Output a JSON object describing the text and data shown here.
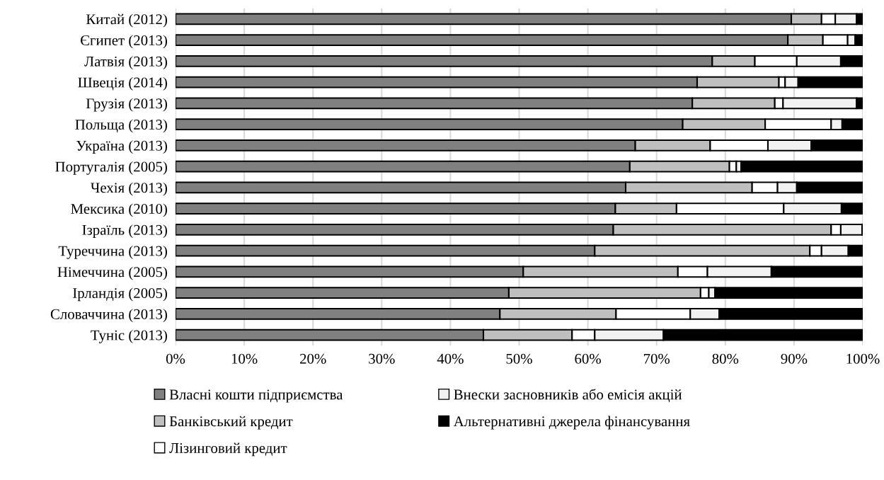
{
  "chart_data": {
    "type": "bar",
    "orientation": "horizontal",
    "stacked": true,
    "categories": [
      "Китай (2012)",
      "Єгипет (2013)",
      "Латвія (2013)",
      "Швеція (2014)",
      "Грузія (2013)",
      "Польща (2013)",
      "Україна (2013)",
      "Португалія (2005)",
      "Чехія (2013)",
      "Мексика (2010)",
      "Ізраїль (2013)",
      "Туреччина (2013)",
      "Німеччина (2005)",
      "Ірландія (2005)",
      "Словаччина (2013)",
      "Туніс (2013)"
    ],
    "series": [
      {
        "name": "Власні кошти підприємства",
        "color": "#808080",
        "values": [
          89.6,
          89.1,
          78.1,
          75.9,
          75.2,
          73.8,
          66.9,
          66.1,
          65.5,
          64.0,
          63.7,
          61.0,
          50.6,
          48.5,
          47.2,
          44.8
        ]
      },
      {
        "name": "Банківський кредит",
        "color": "#bfbfbf",
        "values": [
          4.4,
          5.1,
          6.2,
          11.9,
          12.0,
          12.0,
          10.9,
          14.5,
          18.4,
          8.9,
          31.7,
          31.3,
          22.5,
          27.9,
          16.9,
          12.9
        ]
      },
      {
        "name": "Лізинговий кредит",
        "color": "#ffffff",
        "values": [
          2.0,
          3.6,
          6.1,
          0.9,
          1.2,
          9.6,
          8.4,
          1.0,
          3.7,
          15.6,
          1.4,
          1.7,
          4.3,
          1.2,
          10.8,
          3.3
        ]
      },
      {
        "name": "Внески засновників або емісія акцій",
        "color": "#f2f2f2",
        "values": [
          3.1,
          1.1,
          6.4,
          1.9,
          10.7,
          1.6,
          6.3,
          0.7,
          2.8,
          8.4,
          3.1,
          3.9,
          9.3,
          0.9,
          4.2,
          10.0
        ]
      },
      {
        "name": "Альтернативні джерела фінансування",
        "color": "#000000",
        "values": [
          0.9,
          1.1,
          3.2,
          9.4,
          0.9,
          3.0,
          7.5,
          17.7,
          9.6,
          3.1,
          0.1,
          2.1,
          13.3,
          21.5,
          20.9,
          29.0
        ]
      }
    ],
    "xlim": [
      0,
      100
    ],
    "xticks": [
      {
        "value": 0,
        "label": "0%"
      },
      {
        "value": 10,
        "label": "10%"
      },
      {
        "value": 20,
        "label": "20%"
      },
      {
        "value": 30,
        "label": "30%"
      },
      {
        "value": 40,
        "label": "40%"
      },
      {
        "value": 50,
        "label": "50%"
      },
      {
        "value": 60,
        "label": "60%"
      },
      {
        "value": 70,
        "label": "70%"
      },
      {
        "value": 80,
        "label": "80%"
      },
      {
        "value": 90,
        "label": "90%"
      },
      {
        "value": 100,
        "label": "100%"
      }
    ],
    "grid": "x",
    "legend": "bottom"
  }
}
